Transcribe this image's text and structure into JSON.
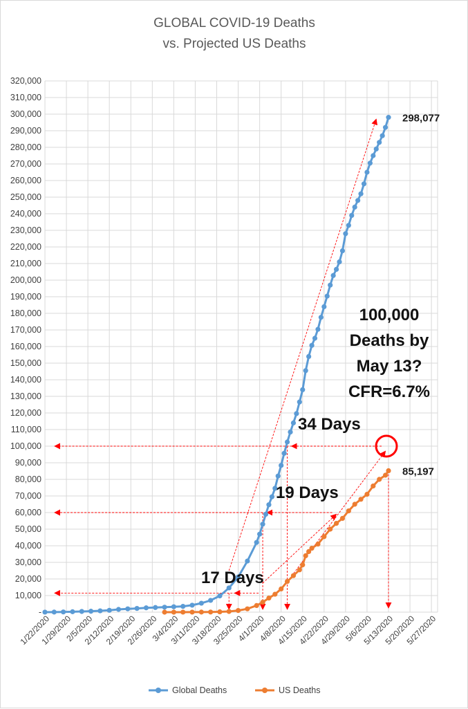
{
  "chart_data": {
    "type": "line",
    "title_lines": [
      "GLOBAL COVID-19 Deaths",
      "vs. Projected US Deaths"
    ],
    "x_tick_labels": [
      "1/22/2020",
      "1/29/2020",
      "2/5/2020",
      "2/12/2020",
      "2/19/2020",
      "2/26/2020",
      "3/4/2020",
      "3/11/2020",
      "3/18/2020",
      "3/25/2020",
      "4/1/2020",
      "4/8/2020",
      "4/15/2020",
      "4/22/2020",
      "4/29/2020",
      "5/6/2020",
      "5/13/2020",
      "5/20/2020",
      "5/27/2020"
    ],
    "x_range": [
      "2020-01-22",
      "2020-05-29"
    ],
    "ylim": [
      0,
      320000
    ],
    "y_tick_step": 10000,
    "y_tick_labels": [
      "-",
      "10,000",
      "20,000",
      "30,000",
      "40,000",
      "50,000",
      "60,000",
      "70,000",
      "80,000",
      "90,000",
      "100,000",
      "110,000",
      "120,000",
      "130,000",
      "140,000",
      "150,000",
      "160,000",
      "170,000",
      "180,000",
      "190,000",
      "200,000",
      "210,000",
      "220,000",
      "230,000",
      "240,000",
      "250,000",
      "260,000",
      "270,000",
      "280,000",
      "290,000",
      "300,000",
      "310,000",
      "320,000"
    ],
    "grid": true,
    "legend_position": "bottom",
    "series": [
      {
        "name": "Global Deaths",
        "color": "#5b9bd5",
        "points": [
          [
            "2020-01-22",
            17
          ],
          [
            "2020-01-25",
            56
          ],
          [
            "2020-01-28",
            132
          ],
          [
            "2020-01-31",
            259
          ],
          [
            "2020-02-03",
            426
          ],
          [
            "2020-02-06",
            565
          ],
          [
            "2020-02-09",
            813
          ],
          [
            "2020-02-12",
            1118
          ],
          [
            "2020-02-15",
            1666
          ],
          [
            "2020-02-18",
            2000
          ],
          [
            "2020-02-21",
            2250
          ],
          [
            "2020-02-24",
            2600
          ],
          [
            "2020-02-27",
            2800
          ],
          [
            "2020-03-01",
            3000
          ],
          [
            "2020-03-04",
            3250
          ],
          [
            "2020-03-07",
            3500
          ],
          [
            "2020-03-10",
            4200
          ],
          [
            "2020-03-13",
            5400
          ],
          [
            "2020-03-16",
            7100
          ],
          [
            "2020-03-19",
            9800
          ],
          [
            "2020-03-22",
            14600
          ],
          [
            "2020-03-25",
            21200
          ],
          [
            "2020-03-28",
            30800
          ],
          [
            "2020-03-31",
            42000
          ],
          [
            "2020-04-01",
            47000
          ],
          [
            "2020-04-02",
            53000
          ],
          [
            "2020-04-03",
            59000
          ],
          [
            "2020-04-04",
            64700
          ],
          [
            "2020-04-05",
            69500
          ],
          [
            "2020-04-06",
            74600
          ],
          [
            "2020-04-07",
            82000
          ],
          [
            "2020-04-08",
            88400
          ],
          [
            "2020-04-09",
            95700
          ],
          [
            "2020-04-10",
            102500
          ],
          [
            "2020-04-11",
            108500
          ],
          [
            "2020-04-12",
            114000
          ],
          [
            "2020-04-13",
            119600
          ],
          [
            "2020-04-14",
            126600
          ],
          [
            "2020-04-15",
            134000
          ],
          [
            "2020-04-16",
            145500
          ],
          [
            "2020-04-17",
            154000
          ],
          [
            "2020-04-18",
            160700
          ],
          [
            "2020-04-19",
            165000
          ],
          [
            "2020-04-20",
            170400
          ],
          [
            "2020-04-21",
            177600
          ],
          [
            "2020-04-22",
            184000
          ],
          [
            "2020-04-23",
            190400
          ],
          [
            "2020-04-24",
            197000
          ],
          [
            "2020-04-25",
            202800
          ],
          [
            "2020-04-26",
            206500
          ],
          [
            "2020-04-27",
            211000
          ],
          [
            "2020-04-28",
            217700
          ],
          [
            "2020-04-29",
            228000
          ],
          [
            "2020-04-30",
            233000
          ],
          [
            "2020-05-01",
            239000
          ],
          [
            "2020-05-02",
            244000
          ],
          [
            "2020-05-03",
            248000
          ],
          [
            "2020-05-04",
            252000
          ],
          [
            "2020-05-05",
            258000
          ],
          [
            "2020-05-06",
            265000
          ],
          [
            "2020-05-07",
            270500
          ],
          [
            "2020-05-08",
            275000
          ],
          [
            "2020-05-09",
            279000
          ],
          [
            "2020-05-10",
            283000
          ],
          [
            "2020-05-11",
            287000
          ],
          [
            "2020-05-12",
            292000
          ],
          [
            "2020-05-13",
            298077
          ]
        ],
        "end_label": "298,077"
      },
      {
        "name": "US Deaths",
        "color": "#ed7d31",
        "points": [
          [
            "2020-03-01",
            1
          ],
          [
            "2020-03-04",
            11
          ],
          [
            "2020-03-07",
            17
          ],
          [
            "2020-03-10",
            28
          ],
          [
            "2020-03-13",
            47
          ],
          [
            "2020-03-16",
            85
          ],
          [
            "2020-03-19",
            200
          ],
          [
            "2020-03-22",
            430
          ],
          [
            "2020-03-25",
            1000
          ],
          [
            "2020-03-28",
            2000
          ],
          [
            "2020-03-31",
            4000
          ],
          [
            "2020-04-02",
            6000
          ],
          [
            "2020-04-04",
            8500
          ],
          [
            "2020-04-06",
            10800
          ],
          [
            "2020-04-08",
            14000
          ],
          [
            "2020-04-10",
            18500
          ],
          [
            "2020-04-12",
            22000
          ],
          [
            "2020-04-14",
            25500
          ],
          [
            "2020-04-15",
            28500
          ],
          [
            "2020-04-16",
            34000
          ],
          [
            "2020-04-17",
            36500
          ],
          [
            "2020-04-18",
            38500
          ],
          [
            "2020-04-20",
            41000
          ],
          [
            "2020-04-22",
            45500
          ],
          [
            "2020-04-24",
            50000
          ],
          [
            "2020-04-26",
            53500
          ],
          [
            "2020-04-28",
            56500
          ],
          [
            "2020-04-30",
            61000
          ],
          [
            "2020-05-02",
            65000
          ],
          [
            "2020-05-04",
            68000
          ],
          [
            "2020-05-06",
            71000
          ],
          [
            "2020-05-08",
            76000
          ],
          [
            "2020-05-10",
            80000
          ],
          [
            "2020-05-12",
            82500
          ],
          [
            "2020-05-13",
            85197
          ]
        ],
        "end_label": "85,197"
      }
    ],
    "annotations": {
      "projection_text": [
        "100,000",
        "Deaths by",
        "May 13?",
        "CFR=6.7%"
      ],
      "days_labels": [
        {
          "text": "34 Days",
          "anchor_date": "2020-04-13",
          "anchor_value": 106000
        },
        {
          "text": "19 Days",
          "anchor_date": "2020-04-06",
          "anchor_value": 70000
        },
        {
          "text": "17 Days",
          "anchor_date": "2020-03-16",
          "anchor_value": 20500
        }
      ],
      "arrow_color": "#ff0000",
      "target_circle": {
        "date": "2020-05-13",
        "value": 100000
      }
    }
  }
}
